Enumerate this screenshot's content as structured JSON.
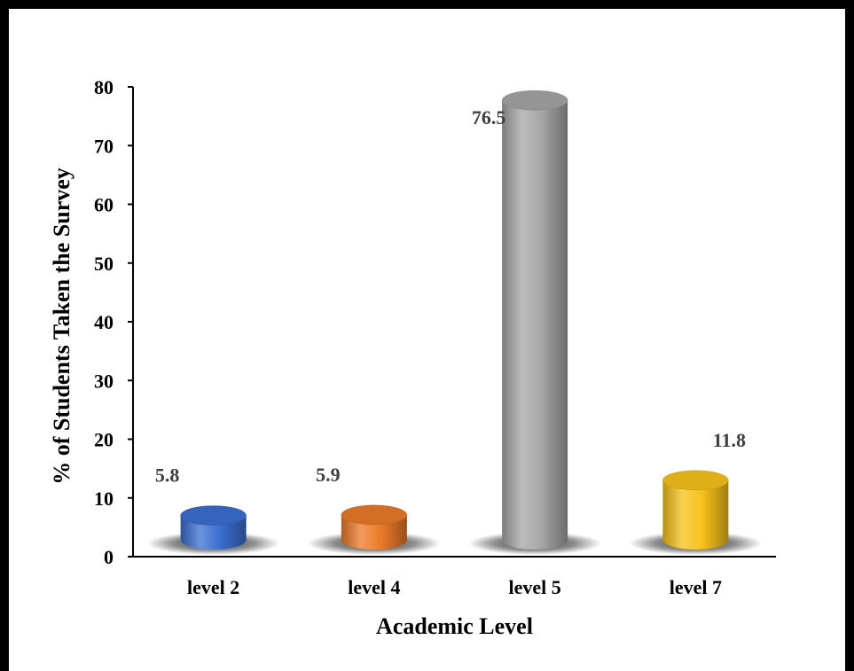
{
  "chart_data": {
    "type": "bar",
    "categories": [
      "level 2",
      "level 4",
      "level 5",
      "level 7"
    ],
    "values": [
      5.8,
      5.9,
      76.5,
      11.8
    ],
    "data_labels": [
      "5.8",
      "5.9",
      "76.5",
      "11.8"
    ],
    "xlabel": "Academic Level",
    "ylabel": "% of Students Taken the Survey",
    "ylim": [
      0,
      80
    ],
    "yticks": [
      "0",
      "10",
      "20",
      "30",
      "40",
      "50",
      "60",
      "70",
      "80"
    ],
    "grid": false,
    "legend": "none",
    "style": "3d-cylinder",
    "colors": [
      "#3a6fd0",
      "#ec7a28",
      "#a6a6a6",
      "#f7c21a"
    ]
  }
}
